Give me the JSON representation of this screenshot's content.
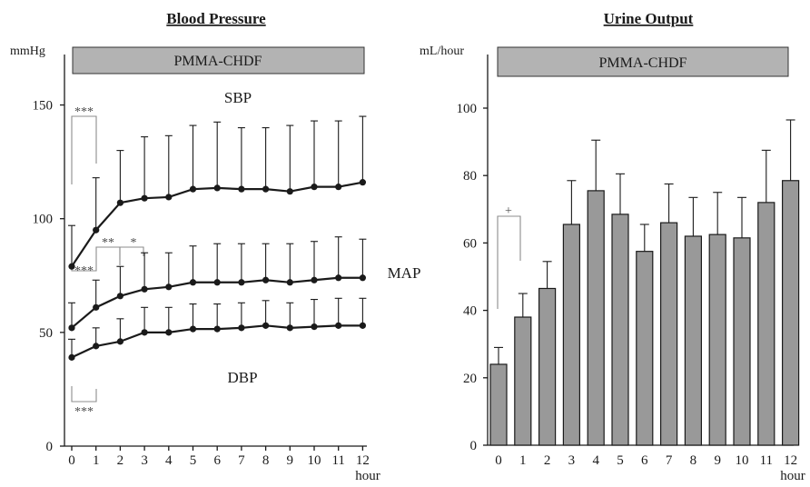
{
  "chart_data": [
    {
      "type": "line",
      "title": "Blood Pressure",
      "ylabel": "mmHg",
      "xlabel": "hour",
      "band_label": "PMMA-CHDF",
      "ylim": [
        0,
        160
      ],
      "yticks": [
        0,
        50,
        100,
        150
      ],
      "x": [
        0,
        1,
        2,
        3,
        4,
        5,
        6,
        7,
        8,
        9,
        10,
        11,
        12
      ],
      "series": [
        {
          "name": "SBP",
          "values": [
            79,
            95,
            107,
            109,
            109.5,
            113,
            113.5,
            113,
            113,
            112,
            114,
            114,
            116
          ],
          "err": [
            18,
            23,
            23,
            27,
            27,
            28,
            29,
            27,
            27,
            29,
            29,
            29,
            29
          ]
        },
        {
          "name": "MAP",
          "values": [
            52,
            61,
            66,
            69,
            70,
            72,
            72,
            72,
            73,
            72,
            73,
            74,
            74
          ],
          "err": [
            11,
            12,
            13,
            16,
            15,
            16,
            17,
            17,
            16,
            17,
            17,
            18,
            17
          ]
        },
        {
          "name": "DBP",
          "values": [
            39,
            44,
            46,
            50,
            50,
            51.5,
            51.5,
            52,
            53,
            52,
            52.5,
            53,
            53
          ],
          "err": [
            8,
            8,
            10,
            11,
            11,
            11,
            11,
            11,
            11,
            11,
            12,
            12,
            12
          ]
        }
      ],
      "annotations": [
        {
          "text": "***",
          "from": 0,
          "to": 1,
          "series": "SBP"
        },
        {
          "text": "***",
          "from": 0,
          "to": 1,
          "series": "MAP"
        },
        {
          "text": "**",
          "from": 1,
          "to": 2,
          "series": "MAP"
        },
        {
          "text": "*",
          "from": 2,
          "to": 3,
          "series": "MAP"
        },
        {
          "text": "***",
          "from": 0,
          "to": 1,
          "series": "DBP"
        }
      ]
    },
    {
      "type": "bar",
      "title": "Urine Output",
      "ylabel": "mL/hour",
      "xlabel": "hour",
      "band_label": "PMMA-CHDF",
      "ylim": [
        0,
        110
      ],
      "yticks": [
        0,
        20,
        40,
        60,
        80,
        100
      ],
      "categories": [
        "0",
        "1",
        "2",
        "3",
        "4",
        "5",
        "6",
        "7",
        "8",
        "9",
        "10",
        "11",
        "12"
      ],
      "values": [
        24,
        38,
        46.5,
        65.5,
        75.5,
        68.5,
        57.5,
        66,
        62,
        62.5,
        61.5,
        72,
        78.5
      ],
      "err": [
        5,
        7,
        8,
        13,
        15,
        12,
        8,
        11.5,
        11.5,
        12.5,
        12,
        15.5,
        18
      ],
      "annotations": [
        {
          "text": "+",
          "from": 0,
          "to": 1
        }
      ]
    }
  ]
}
